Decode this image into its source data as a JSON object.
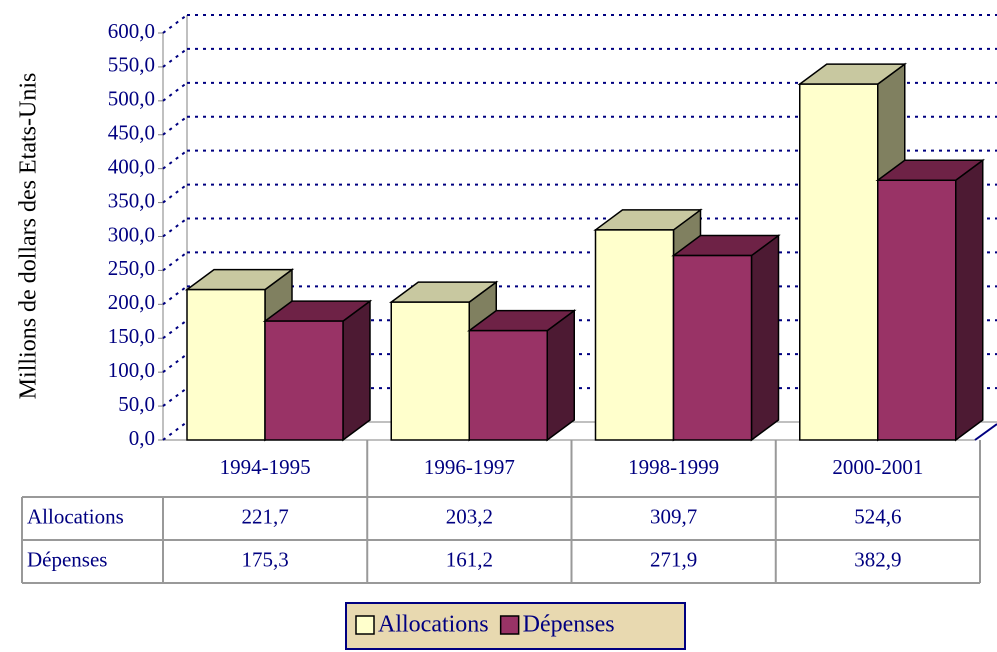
{
  "chart_data": {
    "type": "bar",
    "y_label": "Millions de dollars des Etats-Unis",
    "categories": [
      "1994-1995",
      "1996-1997",
      "1998-1999",
      "2000-2001"
    ],
    "series": [
      {
        "name": "Allocations",
        "color": "#ffffcc",
        "values": [
          221.7,
          203.2,
          309.7,
          524.6
        ],
        "value_labels": [
          "221,7",
          "203,2",
          "309,7",
          "524,6"
        ]
      },
      {
        "name": "Dépenses",
        "color": "#993366",
        "values": [
          175.3,
          161.2,
          271.9,
          382.9
        ],
        "value_labels": [
          "175,3",
          "161,2",
          "271,9",
          "382,9"
        ]
      }
    ],
    "ylim": [
      0,
      600
    ],
    "yticks": [
      {
        "value": 0,
        "label": "0,0"
      },
      {
        "value": 50,
        "label": "50,0"
      },
      {
        "value": 100,
        "label": "100,0"
      },
      {
        "value": 150,
        "label": "150,0"
      },
      {
        "value": 200,
        "label": "200,0"
      },
      {
        "value": 250,
        "label": "250,0"
      },
      {
        "value": 300,
        "label": "300,0"
      },
      {
        "value": 350,
        "label": "350,0"
      },
      {
        "value": 400,
        "label": "400,0"
      },
      {
        "value": 450,
        "label": "450,0"
      },
      {
        "value": 500,
        "label": "500,0"
      },
      {
        "value": 550,
        "label": "550,0"
      },
      {
        "value": 600,
        "label": "600,0"
      }
    ],
    "grid": true,
    "legend": "bottom"
  }
}
